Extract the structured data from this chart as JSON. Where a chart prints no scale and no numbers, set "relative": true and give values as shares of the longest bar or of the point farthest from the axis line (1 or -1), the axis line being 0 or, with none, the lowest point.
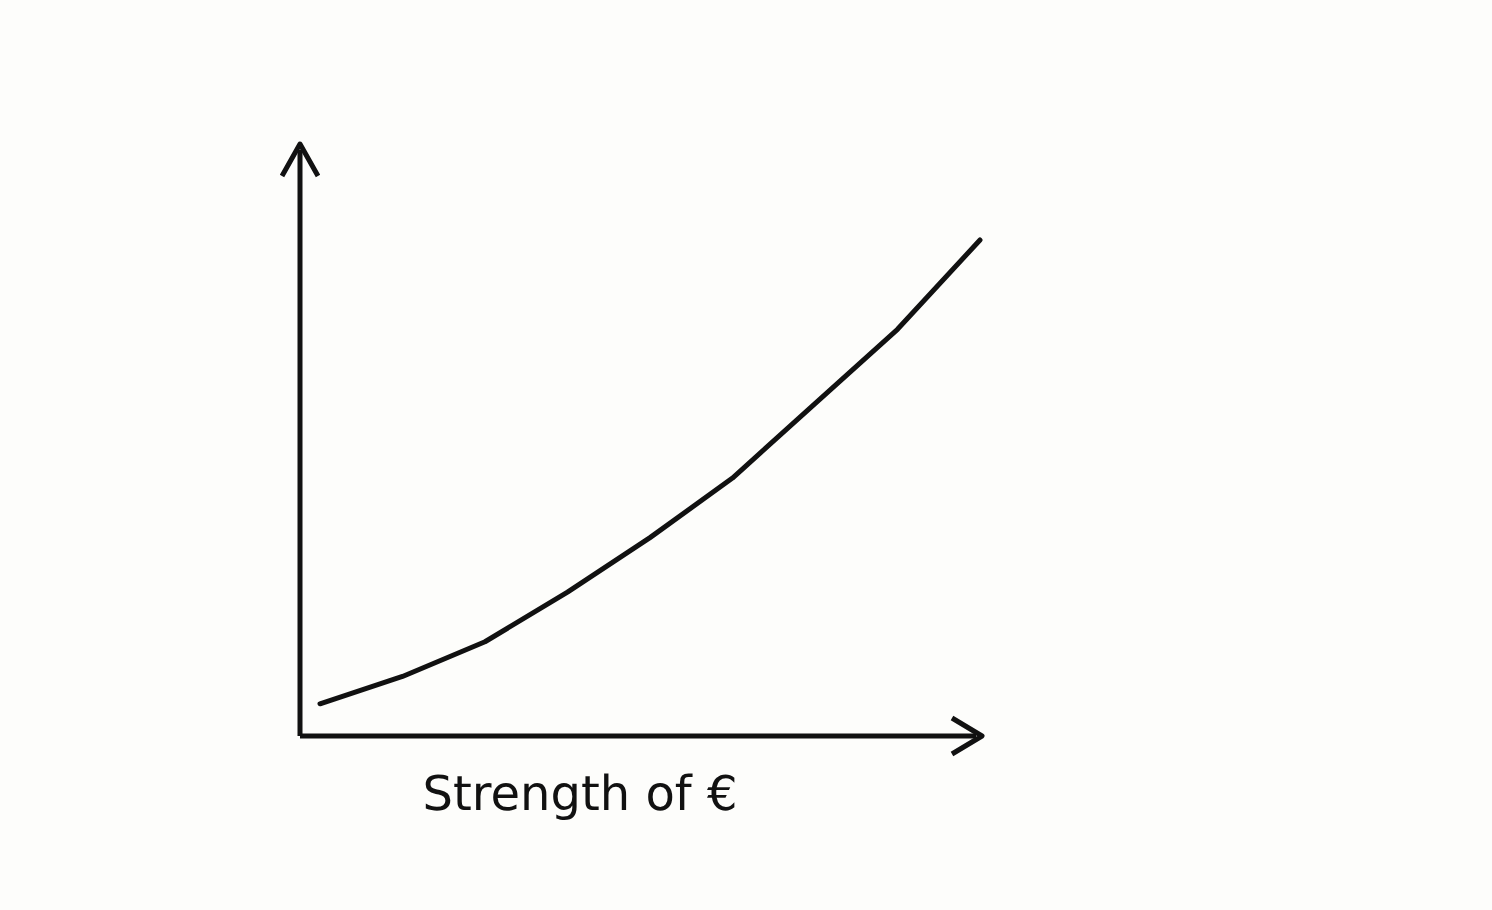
{
  "chart_data": {
    "type": "line",
    "xlabel": "Strength of €",
    "relative": true,
    "categories": [
      null,
      null,
      null,
      null,
      null,
      null,
      null,
      null,
      null
    ],
    "series": [
      {
        "color": "#111111",
        "values": [
          0.065,
          0.12,
          0.19,
          0.29,
          0.4,
          0.52,
          0.67,
          0.82,
          1
        ]
      }
    ],
    "marker": "none",
    "line_style": "solid"
  }
}
